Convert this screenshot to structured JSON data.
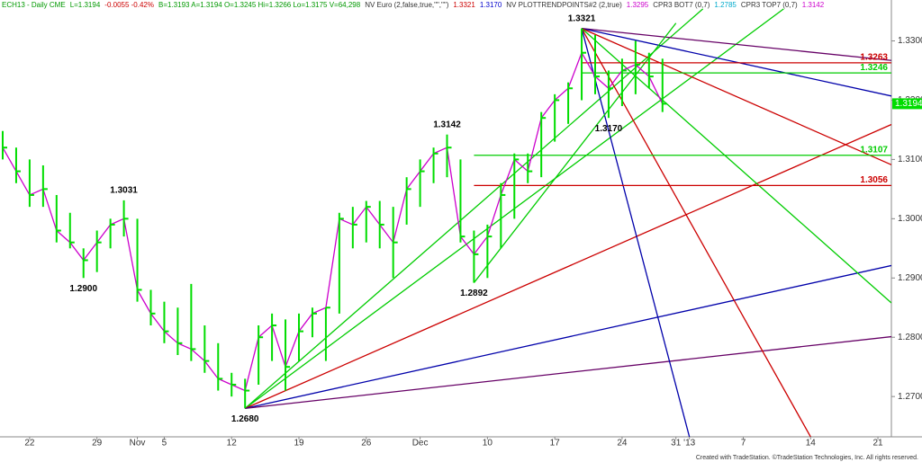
{
  "chart_data": {
    "type": "ohlc",
    "header": [
      {
        "text": "ECH13 - Daily  CME",
        "color": "#009900"
      },
      {
        "text": "L=1.3194",
        "color": "#009900"
      },
      {
        "text": "-0.0055  -0.42%",
        "color": "#cc0000"
      },
      {
        "text": "B=1.3193  A=1.3194  O=1.3245  Hi=1.3266  Lo=1.3175  V=64,298",
        "color": "#009900"
      },
      {
        "text": "NV Euro (2,false,true,\"\",\"\")",
        "color": "#333333"
      },
      {
        "text": "1.3321",
        "color": "#cc0000"
      },
      {
        "text": "1.3170",
        "color": "#0000cc"
      },
      {
        "text": "NV PLOTTRENDPOINTS#2 (2,true)",
        "color": "#333333"
      },
      {
        "text": "1.3295",
        "color": "#cc00cc"
      },
      {
        "text": "CPR3 BOT7 (0,7)",
        "color": "#333333"
      },
      {
        "text": "1.2785",
        "color": "#00aacc"
      },
      {
        "text": "CPR3 TOP7 (0,7)",
        "color": "#333333"
      },
      {
        "text": "1.3142",
        "color": "#cc00cc"
      }
    ],
    "footer": "Created with TradeStation. ©TradeStation Technologies, Inc. All rights reserved.",
    "bar_color": "#00dd00",
    "line_color": "#cc00cc",
    "high": [
      1.3148,
      1.312,
      1.31,
      1.309,
      1.304,
      1.301,
      1.295,
      1.298,
      1.3,
      1.3031,
      1.3,
      1.288,
      1.286,
      1.285,
      1.289,
      1.282,
      1.279,
      1.274,
      1.273,
      1.282,
      1.284,
      1.283,
      1.284,
      1.285,
      1.285,
      1.301,
      1.302,
      1.303,
      1.303,
      1.302,
      1.307,
      1.31,
      1.312,
      1.3142,
      1.31,
      1.298,
      1.299,
      1.306,
      1.311,
      1.311,
      1.318,
      1.321,
      1.323,
      1.3321,
      1.331,
      1.325,
      1.327,
      1.33,
      1.328,
      1.327
    ],
    "low": [
      1.31,
      1.306,
      1.302,
      1.302,
      1.296,
      1.295,
      1.29,
      1.291,
      1.295,
      1.297,
      1.286,
      1.282,
      1.279,
      1.277,
      1.276,
      1.274,
      1.271,
      1.27,
      1.268,
      1.272,
      1.276,
      1.271,
      1.276,
      1.28,
      1.276,
      1.284,
      1.295,
      1.296,
      1.295,
      1.29,
      1.299,
      1.302,
      1.306,
      1.307,
      1.296,
      1.2892,
      1.29,
      1.295,
      1.3,
      1.306,
      1.307,
      1.313,
      1.316,
      1.32,
      1.321,
      1.317,
      1.319,
      1.321,
      1.322,
      1.318
    ],
    "close": [
      1.312,
      1.308,
      1.304,
      1.305,
      1.298,
      1.296,
      1.293,
      1.296,
      1.299,
      1.3,
      1.288,
      1.284,
      1.281,
      1.279,
      1.278,
      1.276,
      1.273,
      1.272,
      1.271,
      1.28,
      1.282,
      1.275,
      1.281,
      1.284,
      1.285,
      1.3,
      1.299,
      1.302,
      1.299,
      1.296,
      1.305,
      1.308,
      1.311,
      1.312,
      1.297,
      1.294,
      1.297,
      1.304,
      1.31,
      1.308,
      1.317,
      1.32,
      1.322,
      1.328,
      1.324,
      1.322,
      1.325,
      1.326,
      1.324,
      1.3194
    ],
    "xlim": [
      0,
      66
    ],
    "xticks": [
      {
        "value": 2,
        "label": "22"
      },
      {
        "value": 7,
        "label": "29"
      },
      {
        "value": 10,
        "label": "Nov"
      },
      {
        "value": 12,
        "label": "5"
      },
      {
        "value": 17,
        "label": "12"
      },
      {
        "value": 22,
        "label": "19"
      },
      {
        "value": 27,
        "label": "26"
      },
      {
        "value": 31,
        "label": "Dec"
      },
      {
        "value": 36,
        "label": "10"
      },
      {
        "value": 41,
        "label": "17"
      },
      {
        "value": 46,
        "label": "24"
      },
      {
        "value": 50,
        "label": "31"
      },
      {
        "value": 51,
        "label": "'13"
      },
      {
        "value": 55,
        "label": "7"
      },
      {
        "value": 60,
        "label": "14"
      },
      {
        "value": 65,
        "label": "21"
      }
    ],
    "ylim": [
      1.2632,
      1.3369
    ],
    "yticks": [
      {
        "value": 1.27,
        "label": "1.2700"
      },
      {
        "value": 1.28,
        "label": "1.2800"
      },
      {
        "value": 1.29,
        "label": "1.2900"
      },
      {
        "value": 1.3,
        "label": "1.3000"
      },
      {
        "value": 1.31,
        "label": "1.3100"
      },
      {
        "value": 1.32,
        "label": "1.3200"
      },
      {
        "value": 1.33,
        "label": "1.3300"
      }
    ],
    "last": {
      "value": 1.3194,
      "label": "1.3194",
      "color": "#00dd00"
    },
    "annotations": [
      {
        "label": "1.3321",
        "x": 43,
        "y": 1.3321,
        "pos": "above"
      },
      {
        "label": "1.3142",
        "x": 33,
        "y": 1.3142,
        "pos": "above"
      },
      {
        "label": "1.3031",
        "x": 9,
        "y": 1.3031,
        "pos": "above"
      },
      {
        "label": "1.2900",
        "x": 6,
        "y": 1.29,
        "pos": "below"
      },
      {
        "label": "1.2680",
        "x": 18,
        "y": 1.268,
        "pos": "below"
      },
      {
        "label": "1.2892",
        "x": 35,
        "y": 1.2892,
        "pos": "below"
      },
      {
        "label": "1.3170",
        "x": 45,
        "y": 1.317,
        "pos": "below"
      }
    ],
    "levels": [
      {
        "label": "1.3263",
        "value": 1.3263,
        "color": "#cc0000",
        "from": 43
      },
      {
        "label": "1.3246",
        "value": 1.3246,
        "color": "#00cc00",
        "from": 43
      },
      {
        "label": "1.3107",
        "value": 1.3107,
        "color": "#00cc00",
        "from": 35
      },
      {
        "label": "1.3056",
        "value": 1.3056,
        "color": "#cc0000",
        "from": 35
      }
    ],
    "trendlines": [
      {
        "color": "#00cc00",
        "points": [
          [
            18,
            1.268
          ],
          [
            52,
            1.3354
          ]
        ]
      },
      {
        "color": "#00cc00",
        "points": [
          [
            18,
            1.268
          ],
          [
            58,
            1.3354
          ]
        ]
      },
      {
        "color": "#cc0000",
        "points": [
          [
            18,
            1.268
          ],
          [
            66,
            1.3159
          ]
        ]
      },
      {
        "color": "#0000aa",
        "points": [
          [
            18,
            1.268
          ],
          [
            66,
            1.2921
          ]
        ]
      },
      {
        "color": "#660066",
        "points": [
          [
            18,
            1.268
          ],
          [
            66,
            1.2801
          ]
        ]
      },
      {
        "color": "#660066",
        "points": [
          [
            43,
            1.3321
          ],
          [
            66,
            1.3267
          ]
        ]
      },
      {
        "color": "#0000aa",
        "points": [
          [
            43,
            1.3321
          ],
          [
            66,
            1.3207
          ]
        ]
      },
      {
        "color": "#cc0000",
        "points": [
          [
            43,
            1.3321
          ],
          [
            66,
            1.3091
          ]
        ]
      },
      {
        "color": "#00cc00",
        "points": [
          [
            43,
            1.3321
          ],
          [
            66,
            1.2858
          ]
        ]
      },
      {
        "color": "#cc0000",
        "points": [
          [
            43,
            1.3321
          ],
          [
            60,
            1.2632
          ]
        ]
      },
      {
        "color": "#0000aa",
        "points": [
          [
            43,
            1.3321
          ],
          [
            51,
            1.2632
          ]
        ]
      },
      {
        "color": "#00cc00",
        "points": [
          [
            35,
            1.2892
          ],
          [
            50,
            1.333
          ]
        ]
      }
    ]
  }
}
